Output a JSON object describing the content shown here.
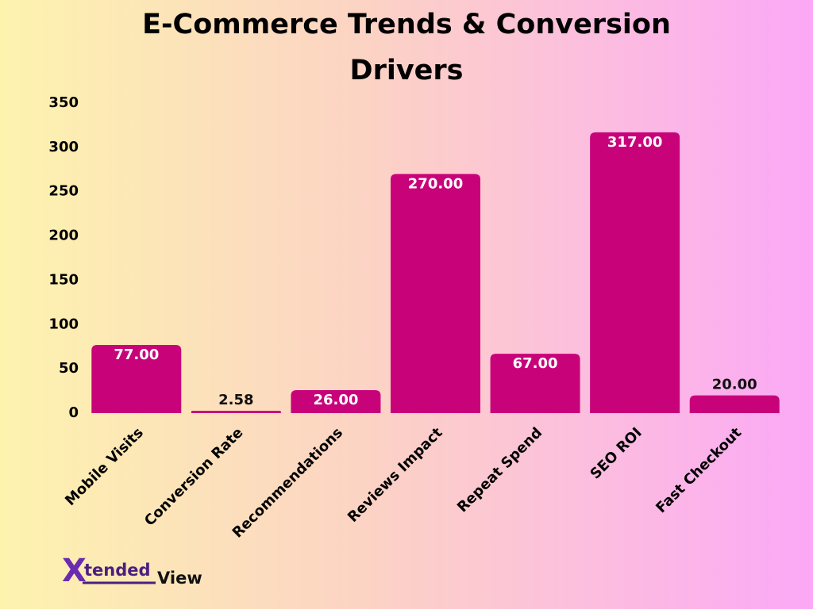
{
  "chart_data": {
    "type": "bar",
    "title": "E-Commerce Trends & Conversion Drivers",
    "categories": [
      "Mobile Visits",
      "Conversion Rate",
      "Recommendations",
      "Reviews Impact",
      "Repeat Spend",
      "SEO ROI",
      "Fast Checkout"
    ],
    "values": [
      77,
      2.58,
      26,
      270,
      67,
      317,
      20
    ],
    "value_labels": [
      "77.00",
      "2.58",
      "26.00",
      "270.00",
      "67.00",
      "317.00",
      "20.00"
    ],
    "color": "#c8037a",
    "ylim": [
      0,
      350
    ],
    "yticks": [
      0,
      50,
      100,
      150,
      200,
      250,
      300,
      350
    ],
    "grid": false
  },
  "logo": {
    "mark": "X",
    "text": "tended",
    "suffix": "View"
  }
}
